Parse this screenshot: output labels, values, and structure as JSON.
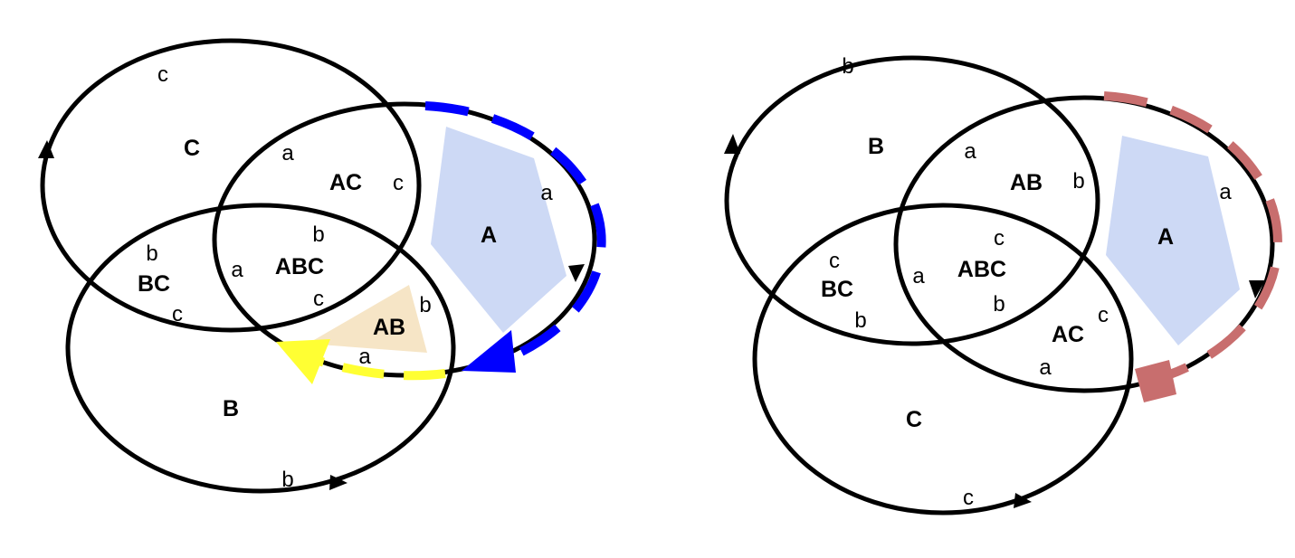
{
  "colors": {
    "outline": "#000000",
    "dash_blue": "#0000ff",
    "dash_yellow": "#ffff33",
    "dash_rose": "#c86e6e",
    "fill_blue": "#cdd9f5",
    "fill_peach": "#f6e5c6"
  },
  "left_diagram": {
    "regions": {
      "C": "C",
      "AC": "AC",
      "A": "A",
      "BC": "BC",
      "ABC": "ABC",
      "AB": "AB",
      "B": "B"
    },
    "letters": {
      "c_top": "c",
      "a_ac": "a",
      "c_ac": "c",
      "a_right": "a",
      "b_center": "b",
      "a_left": "a",
      "c_center": "c",
      "b_bc": "b",
      "c_bc": "c",
      "b_ab": "b",
      "a_ab": "a",
      "b_bottom": "b"
    }
  },
  "right_diagram": {
    "regions": {
      "B": "B",
      "AB": "AB",
      "A": "A",
      "BC": "BC",
      "ABC": "ABC",
      "AC": "AC",
      "C": "C"
    },
    "letters": {
      "b_top": "b",
      "a_ab": "a",
      "b_ab": "b",
      "a_right": "a",
      "c_center": "c",
      "a_left": "a",
      "b_center": "b",
      "c_bc": "c",
      "b_bc": "b",
      "c_ac": "c",
      "a_ac": "a",
      "c_bottom": "c"
    }
  }
}
